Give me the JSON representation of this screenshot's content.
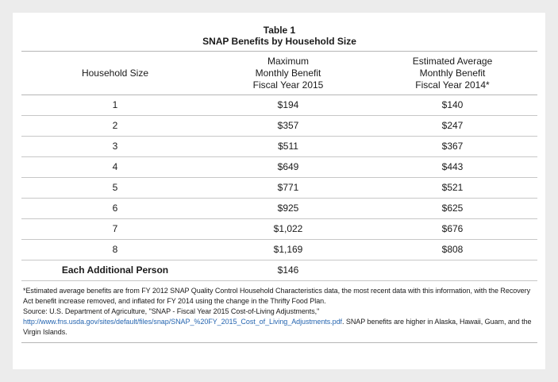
{
  "table": {
    "caption_line1": "Table 1",
    "caption_line2": "SNAP Benefits by Household Size",
    "headers": {
      "col1": "Household Size",
      "col2_line1": "Maximum",
      "col2_line2": "Monthly Benefit",
      "col2_line3": "Fiscal Year 2015",
      "col3_line1": "Estimated Average",
      "col3_line2": "Monthly Benefit",
      "col3_line3": "Fiscal Year 2014*"
    },
    "rows": [
      {
        "size": "1",
        "max": "$194",
        "avg": "$140"
      },
      {
        "size": "2",
        "max": "$357",
        "avg": "$247"
      },
      {
        "size": "3",
        "max": "$511",
        "avg": "$367"
      },
      {
        "size": "4",
        "max": "$649",
        "avg": "$443"
      },
      {
        "size": "5",
        "max": "$771",
        "avg": "$521"
      },
      {
        "size": "6",
        "max": "$925",
        "avg": "$625"
      },
      {
        "size": "7",
        "max": "$1,022",
        "avg": "$676"
      },
      {
        "size": "8",
        "max": "$1,169",
        "avg": "$808"
      },
      {
        "size": "Each Additional Person",
        "max": "$146",
        "avg": ""
      }
    ]
  },
  "notes": {
    "footnote": "*Estimated average benefits are from FY 2012 SNAP Quality Control Household Characteristics data, the most recent data with this information, with the Recovery Act benefit increase removed, and inflated for FY 2014 using the change in the Thrifty Food Plan.",
    "source_prefix": "Source: U.S. Department of Agriculture, \"SNAP - Fiscal Year 2015 Cost-of-Living Adjustments,\" ",
    "source_link": "http://www.fns.usda.gov/sites/default/files/snap/SNAP_%20FY_2015_Cost_of_Living_Adjustments.pdf",
    "source_suffix": ". SNAP benefits are higher in Alaska, Hawaii, Guam, and the Virgin Islands.",
    "link_color": "#2565b0"
  }
}
